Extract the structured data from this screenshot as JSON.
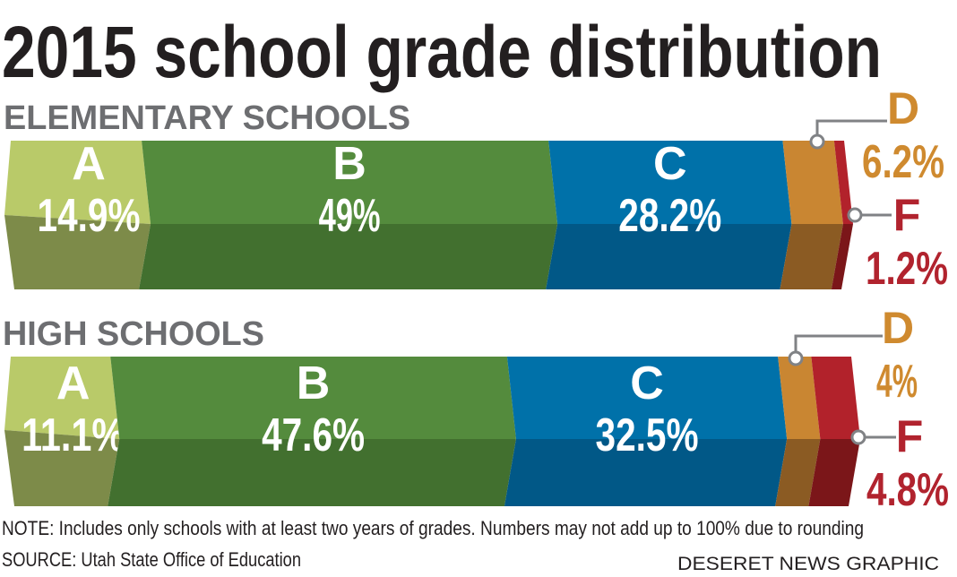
{
  "chart_data": {
    "type": "bar",
    "stacked": true,
    "orientation": "horizontal",
    "title": "2015 school grade distribution",
    "unit": "%",
    "colors": {
      "A": [
        "#b9ca69",
        "#7d8b49"
      ],
      "B": [
        "#548b3d",
        "#42702f"
      ],
      "C": [
        "#0071a9",
        "#015887"
      ],
      "D": [
        "#c98632",
        "#8b5b23"
      ],
      "F": [
        "#b2222b",
        "#7b1619"
      ]
    },
    "label_colors": {
      "D": "#cf8a2f",
      "F": "#b1232e"
    },
    "charts": [
      {
        "section": "ELEMENTARY SCHOOLS",
        "categories": [
          "A",
          "B",
          "C",
          "D",
          "F"
        ],
        "values": [
          14.9,
          49,
          28.2,
          6.2,
          1.2
        ],
        "labels": [
          "14.9%",
          "49%",
          "28.2%",
          "6.2%",
          "1.2%"
        ]
      },
      {
        "section": "HIGH SCHOOLS",
        "categories": [
          "A",
          "B",
          "C",
          "D",
          "F"
        ],
        "values": [
          11.1,
          47.6,
          32.5,
          4,
          4.8
        ],
        "labels": [
          "11.1%",
          "47.6%",
          "32.5%",
          "4%",
          "4.8%"
        ]
      }
    ],
    "note": "NOTE: Includes only schools with at least two years of grades. Numbers may not add up to 100% due to rounding",
    "source": "SOURCE: Utah State Office of Education",
    "credit": "DESERET NEWS GRAPHIC"
  }
}
